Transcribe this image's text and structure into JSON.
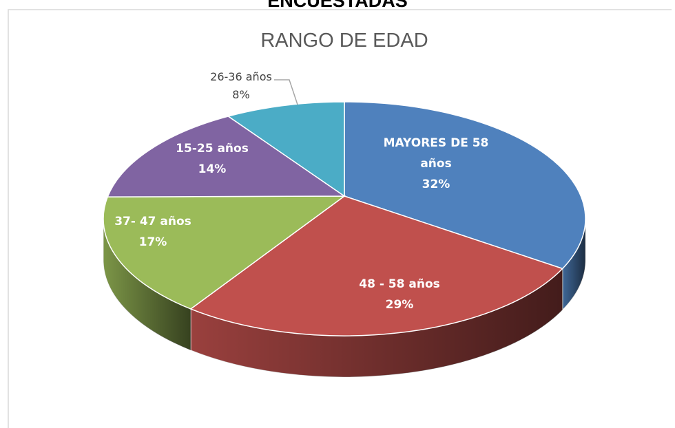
{
  "heading": "ENCUESTADAS",
  "chart_data": {
    "type": "pie",
    "title": "RANGO DE EDAD",
    "categories": [
      "MAYORES DE 58 años",
      "48 - 58 años",
      "37- 47 años",
      "15-25 años",
      "26-36 años"
    ],
    "values": [
      32,
      29,
      17,
      14,
      8
    ],
    "value_labels": [
      "32%",
      "29%",
      "17%",
      "14%",
      "8%"
    ],
    "colors": [
      "#4f81bd",
      "#c0504d",
      "#9bbb59",
      "#8064a2",
      "#4bacc6"
    ]
  }
}
